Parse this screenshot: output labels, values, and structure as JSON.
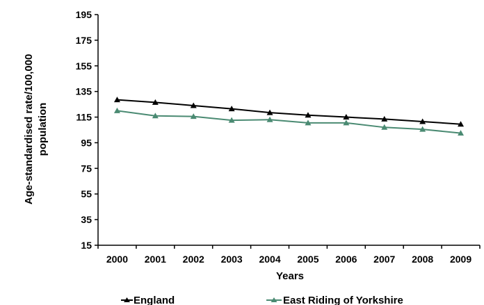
{
  "chart_data": {
    "type": "line",
    "title": "",
    "xlabel": "Years",
    "ylabel_lines": [
      "Age-standardised rate/100,000",
      "population"
    ],
    "categories": [
      "2000",
      "2001",
      "2002",
      "2003",
      "2004",
      "2005",
      "2006",
      "2007",
      "2008",
      "2009"
    ],
    "ylim": [
      15,
      195
    ],
    "yticks": [
      "15",
      "35",
      "55",
      "75",
      "95",
      "115",
      "135",
      "155",
      "175",
      "195"
    ],
    "grid": false,
    "legend_position": "bottom",
    "series": [
      {
        "name": "England",
        "color": "#000000",
        "marker": "triangle",
        "values": [
          128.5,
          126.5,
          124,
          121.5,
          118.5,
          116.5,
          115,
          113.5,
          111.5,
          109.5
        ]
      },
      {
        "name": "East Riding of Yorkshire",
        "color": "#4a8a72",
        "marker": "triangle",
        "values": [
          120,
          116,
          115.5,
          112.5,
          113,
          110.5,
          110.5,
          107,
          105.5,
          102.5
        ]
      }
    ]
  }
}
